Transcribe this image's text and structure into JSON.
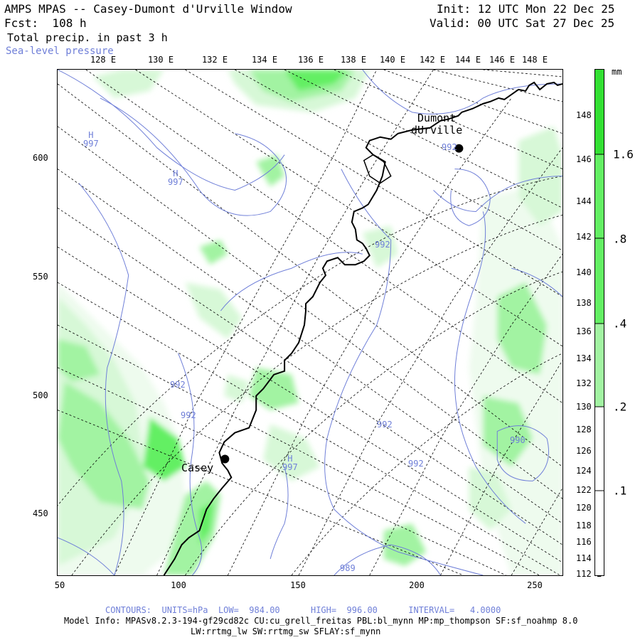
{
  "header": {
    "title": "AMPS MPAS -- Casey-Dumont d'Urville Window",
    "forecast": "Fcst:  108 h",
    "field": "Total precip. in past 3 h",
    "overlay": "Sea-level pressure",
    "init": "Init: 12 UTC Mon 22 Dec 25",
    "valid": "Valid: 00 UTC Sat 27 Dec 25"
  },
  "axes": {
    "top_ticks": [
      "128 E",
      "130 E",
      "132 E",
      "134 E",
      "136 E",
      "138 E",
      "140 E",
      "142 E",
      "144 E",
      "146 E",
      "148 E"
    ],
    "right_ticks": [
      "148 E",
      "146 E",
      "144 E",
      "142 E",
      "140 E",
      "138 E",
      "136 E",
      "134 E",
      "132 E",
      "130 E",
      "128 E",
      "126 E",
      "124 E",
      "122 E",
      "120 E",
      "118 E",
      "116 E",
      "114 E",
      "112 E"
    ],
    "left_ticks": [
      "600",
      "550",
      "500",
      "450"
    ],
    "bottom_ticks": [
      "50",
      "100",
      "150",
      "200",
      "250"
    ],
    "x_range": [
      50,
      262
    ],
    "y_range": [
      422,
      635
    ]
  },
  "colorbar": {
    "unit": "mm",
    "labels": [
      "1.6",
      ".8",
      ".4",
      ".2",
      ".1"
    ],
    "colors": {
      "c16": "#33e033",
      "c08": "#63ef63",
      "c04": "#a2f3a2",
      "c02": "#d7f8d7",
      "c01": "#eefbee"
    }
  },
  "places": {
    "dumont": "Dumont\ndUrville",
    "casey": "Casey"
  },
  "contour_labels": [
    {
      "t": "H\n997"
    },
    {
      "t": "H\n997"
    },
    {
      "t": "992"
    },
    {
      "t": "992"
    },
    {
      "t": "992"
    },
    {
      "t": "992"
    },
    {
      "t": "H\n997"
    },
    {
      "t": "992"
    },
    {
      "t": "992"
    },
    {
      "t": "990"
    },
    {
      "t": "989"
    }
  ],
  "footer": {
    "contours": "CONTOURS:  UNITS=hPa  LOW=  984.00      HIGH=  996.00      INTERVAL=   4.0000",
    "model_info": "Model Info: MPASv8.2.3-194-gf29cd82c CU:cu_grell_freitas PBL:bl_mynn MP:mp_thompson SF:sf_noahmp 8.0",
    "model_info2": "LW:rrtmg_lw SW:rrtmg_sw SFLAY:sf_mynn"
  },
  "colors": {
    "isobar": "#6f7fd8",
    "grid": "#000000"
  }
}
